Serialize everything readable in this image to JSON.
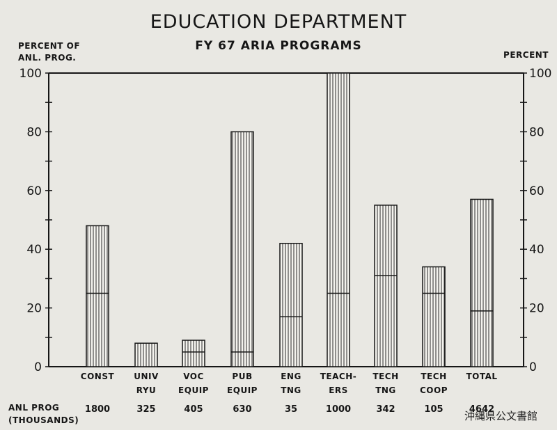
{
  "header": {
    "title": "EDUCATION DEPARTMENT",
    "subtitle": "FY 67 ARIA PROGRAMS",
    "left_axis_line1": "PERCENT OF",
    "left_axis_line2": "ANL. PROG.",
    "right_axis": "PERCENT"
  },
  "footer": {
    "line1": "ANL PROG",
    "line2": "(THOUSANDS)"
  },
  "stamp": "沖縄県公文書館",
  "chart_data": {
    "type": "bar",
    "categories": [
      [
        "CONST"
      ],
      [
        "UNIV",
        "RYU"
      ],
      [
        "VOC",
        "EQUIP"
      ],
      [
        "PUB",
        "EQUIP"
      ],
      [
        "ENG",
        "TNG"
      ],
      [
        "TEACH-",
        "ERS"
      ],
      [
        "TECH",
        "TNG"
      ],
      [
        "TECH",
        "COOP"
      ],
      [
        "TOTAL"
      ]
    ],
    "values": [
      48,
      8,
      9,
      80,
      42,
      100,
      55,
      34,
      57
    ],
    "markers": [
      25,
      null,
      5,
      5,
      17,
      25,
      31,
      25,
      19
    ],
    "anl_prog_thousands": [
      "1800",
      "325",
      "405",
      "630",
      "35",
      "1000",
      "342",
      "105",
      "4642"
    ],
    "ylim": [
      0,
      100
    ],
    "yticks": [
      0,
      20,
      40,
      60,
      80,
      100
    ],
    "ytick_labels_right": [
      "0",
      "20",
      "40",
      "60",
      "80",
      "100"
    ],
    "bar_fill": "vertical-hatch",
    "grid": false
  }
}
